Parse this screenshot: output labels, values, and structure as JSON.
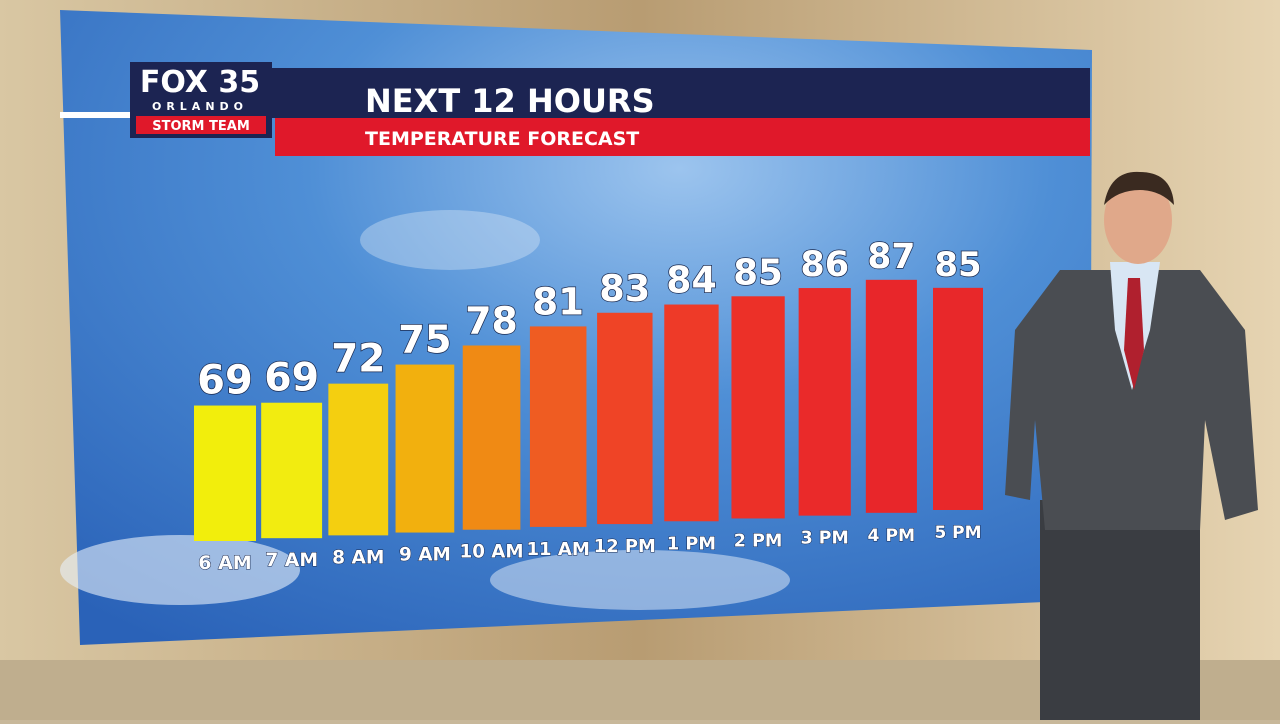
{
  "logo": {
    "brand": "FOX 35",
    "city": "ORLANDO",
    "team": "STORM TEAM"
  },
  "chart_data": {
    "type": "bar",
    "title": "NEXT 12 HOURS",
    "subtitle": "TEMPERATURE FORECAST",
    "categories": [
      "6 AM",
      "7 AM",
      "8 AM",
      "9 AM",
      "10 AM",
      "11 AM",
      "12 PM",
      "1 PM",
      "2 PM",
      "3 PM",
      "4 PM",
      "5 PM"
    ],
    "values": [
      69,
      69,
      72,
      75,
      78,
      81,
      83,
      84,
      85,
      86,
      87,
      85
    ],
    "colors": [
      "#f2ee0c",
      "#f2ec10",
      "#f4cf10",
      "#f2b00e",
      "#f08a14",
      "#ef5c22",
      "#ef4426",
      "#ee3a28",
      "#ec3028",
      "#ea2a2a",
      "#e8262a",
      "#e8282a"
    ]
  }
}
